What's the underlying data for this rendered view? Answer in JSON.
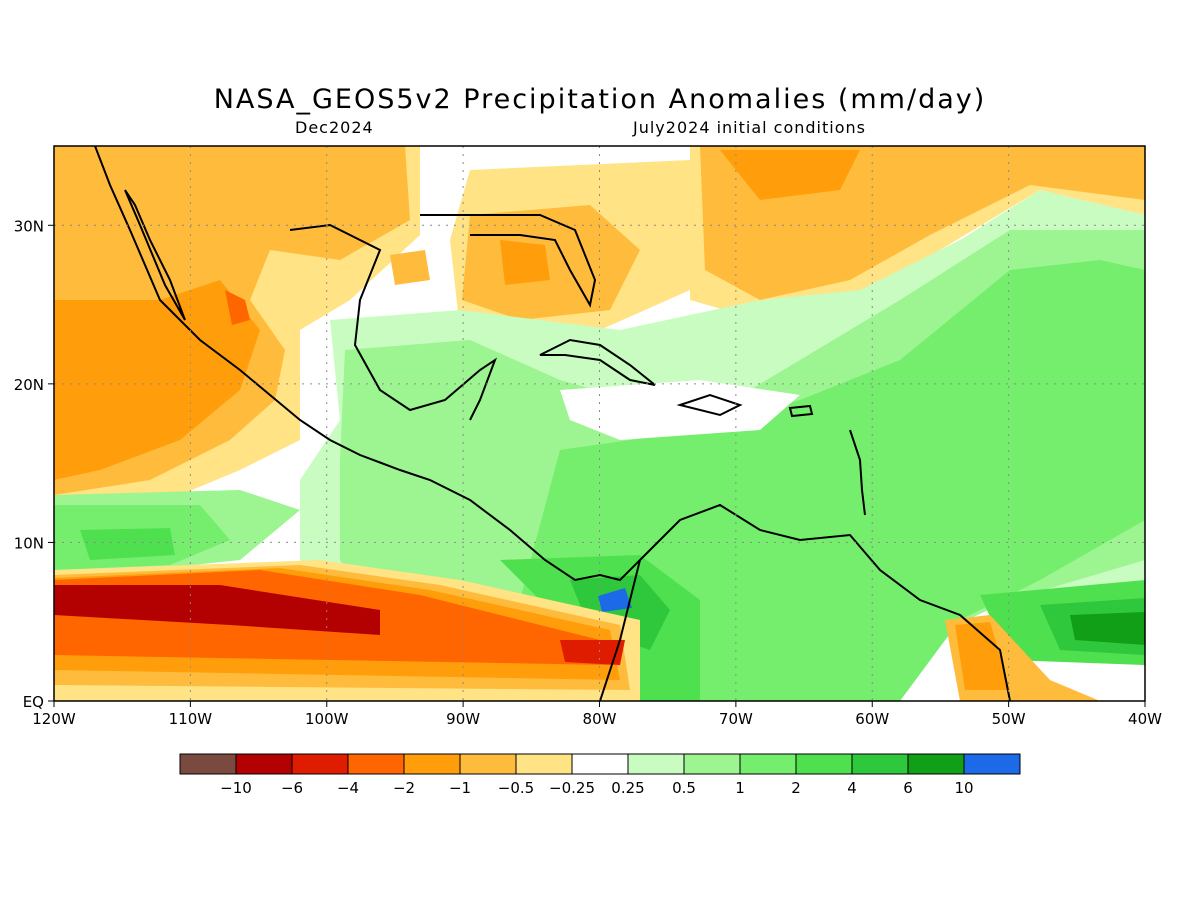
{
  "title": "NASA_GEOS5v2 Precipitation Anomalies (mm/day)",
  "subtitle_left": "Dec2024",
  "subtitle_right": "July2024 initial conditions",
  "map": {
    "lon_range": [
      -120,
      -40
    ],
    "lat_range": [
      0,
      35
    ],
    "lon_ticks": [
      {
        "value": -120,
        "label": "120W"
      },
      {
        "value": -110,
        "label": "110W"
      },
      {
        "value": -100,
        "label": "100W"
      },
      {
        "value": -90,
        "label": "90W"
      },
      {
        "value": -80,
        "label": "80W"
      },
      {
        "value": -70,
        "label": "70W"
      },
      {
        "value": -60,
        "label": "60W"
      },
      {
        "value": -50,
        "label": "50W"
      },
      {
        "value": -40,
        "label": "40W"
      }
    ],
    "lat_ticks": [
      {
        "value": 0,
        "label": "EQ"
      },
      {
        "value": 10,
        "label": "10N"
      },
      {
        "value": 20,
        "label": "20N"
      },
      {
        "value": 30,
        "label": "30N"
      }
    ],
    "grid": true,
    "coastlines": true
  },
  "colorbar": {
    "colors": [
      "#7a4a40",
      "#b30000",
      "#e01c00",
      "#ff6600",
      "#ff9e0a",
      "#ffbb3c",
      "#ffe385",
      "#ffffff",
      "#c8fcc0",
      "#9cf590",
      "#75ee6e",
      "#4fe050",
      "#2fc83c",
      "#129f18",
      "#1c6ae8"
    ],
    "labels": [
      "−10",
      "−6",
      "−4",
      "−2",
      "−1",
      "−0.5",
      "−0.25",
      "0.25",
      "0.5",
      "1",
      "2",
      "4",
      "6",
      "10"
    ]
  }
}
